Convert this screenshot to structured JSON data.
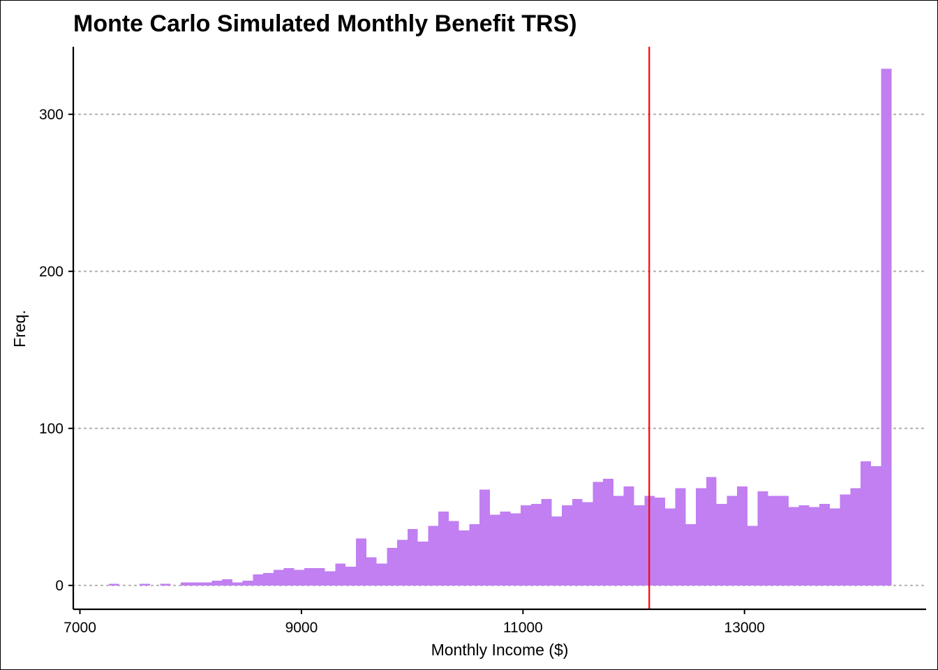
{
  "chart_data": {
    "type": "bar",
    "title": "Monte Carlo Simulated Monthly Benefit TRS)",
    "xlabel": "Monthly Income ($)",
    "ylabel": "Freq.",
    "xlim": [
      6940,
      14640
    ],
    "ylim": [
      -15.2,
      343
    ],
    "xticks": [
      7000,
      9000,
      11000,
      13000
    ],
    "yticks": [
      0,
      100,
      200,
      300
    ],
    "grid": "horizontal-dotted",
    "bin_start": 7260,
    "bin_width": 93,
    "values": [
      1,
      0,
      0,
      1,
      0,
      1,
      0,
      2,
      2,
      2,
      3,
      4,
      2,
      3,
      7,
      8,
      10,
      11,
      10,
      11,
      11,
      9,
      14,
      12,
      30,
      18,
      14,
      24,
      29,
      36,
      28,
      38,
      47,
      41,
      35,
      39,
      61,
      45,
      47,
      46,
      51,
      52,
      55,
      44,
      51,
      55,
      53,
      66,
      68,
      57,
      63,
      51,
      57,
      56,
      49,
      62,
      39,
      62,
      69,
      52,
      57,
      63,
      38,
      60,
      57,
      57,
      50,
      51,
      50,
      52,
      49,
      58,
      62,
      79,
      76,
      329
    ],
    "mean_line": 12140,
    "bar_color": "#c17ff2",
    "mean_line_color": "#ff0000"
  }
}
